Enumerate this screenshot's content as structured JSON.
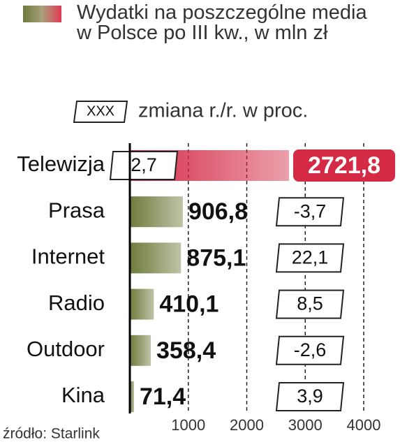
{
  "chart_data": {
    "type": "bar",
    "orientation": "horizontal",
    "title": "Wydatki na poszczególne media w Polsce po III kw., w mln zł",
    "change_sample": "XXX",
    "change_label": "zmiana r./r. w proc.",
    "categories": [
      "Telewizja",
      "Prasa",
      "Internet",
      "Radio",
      "Outdoor",
      "Kina"
    ],
    "values": [
      2721.8,
      906.8,
      875.1,
      410.1,
      358.4,
      71.4
    ],
    "value_labels": [
      "2721,8",
      "906,8",
      "875,1",
      "410,1",
      "358,4",
      "71,4"
    ],
    "changes": [
      "2,7",
      "-3,7",
      "22,1",
      "8,5",
      "-2,6",
      "3,9"
    ],
    "colors": [
      "#d42a45",
      "#6e7b3c",
      "#6e7b3c",
      "#6e7b3c",
      "#6e7b3c",
      "#6e7b3c"
    ],
    "xlim": [
      0,
      4000
    ],
    "xticks": [
      1000,
      2000,
      3000,
      4000
    ],
    "grid": true,
    "source": "źródło: Starlink"
  }
}
